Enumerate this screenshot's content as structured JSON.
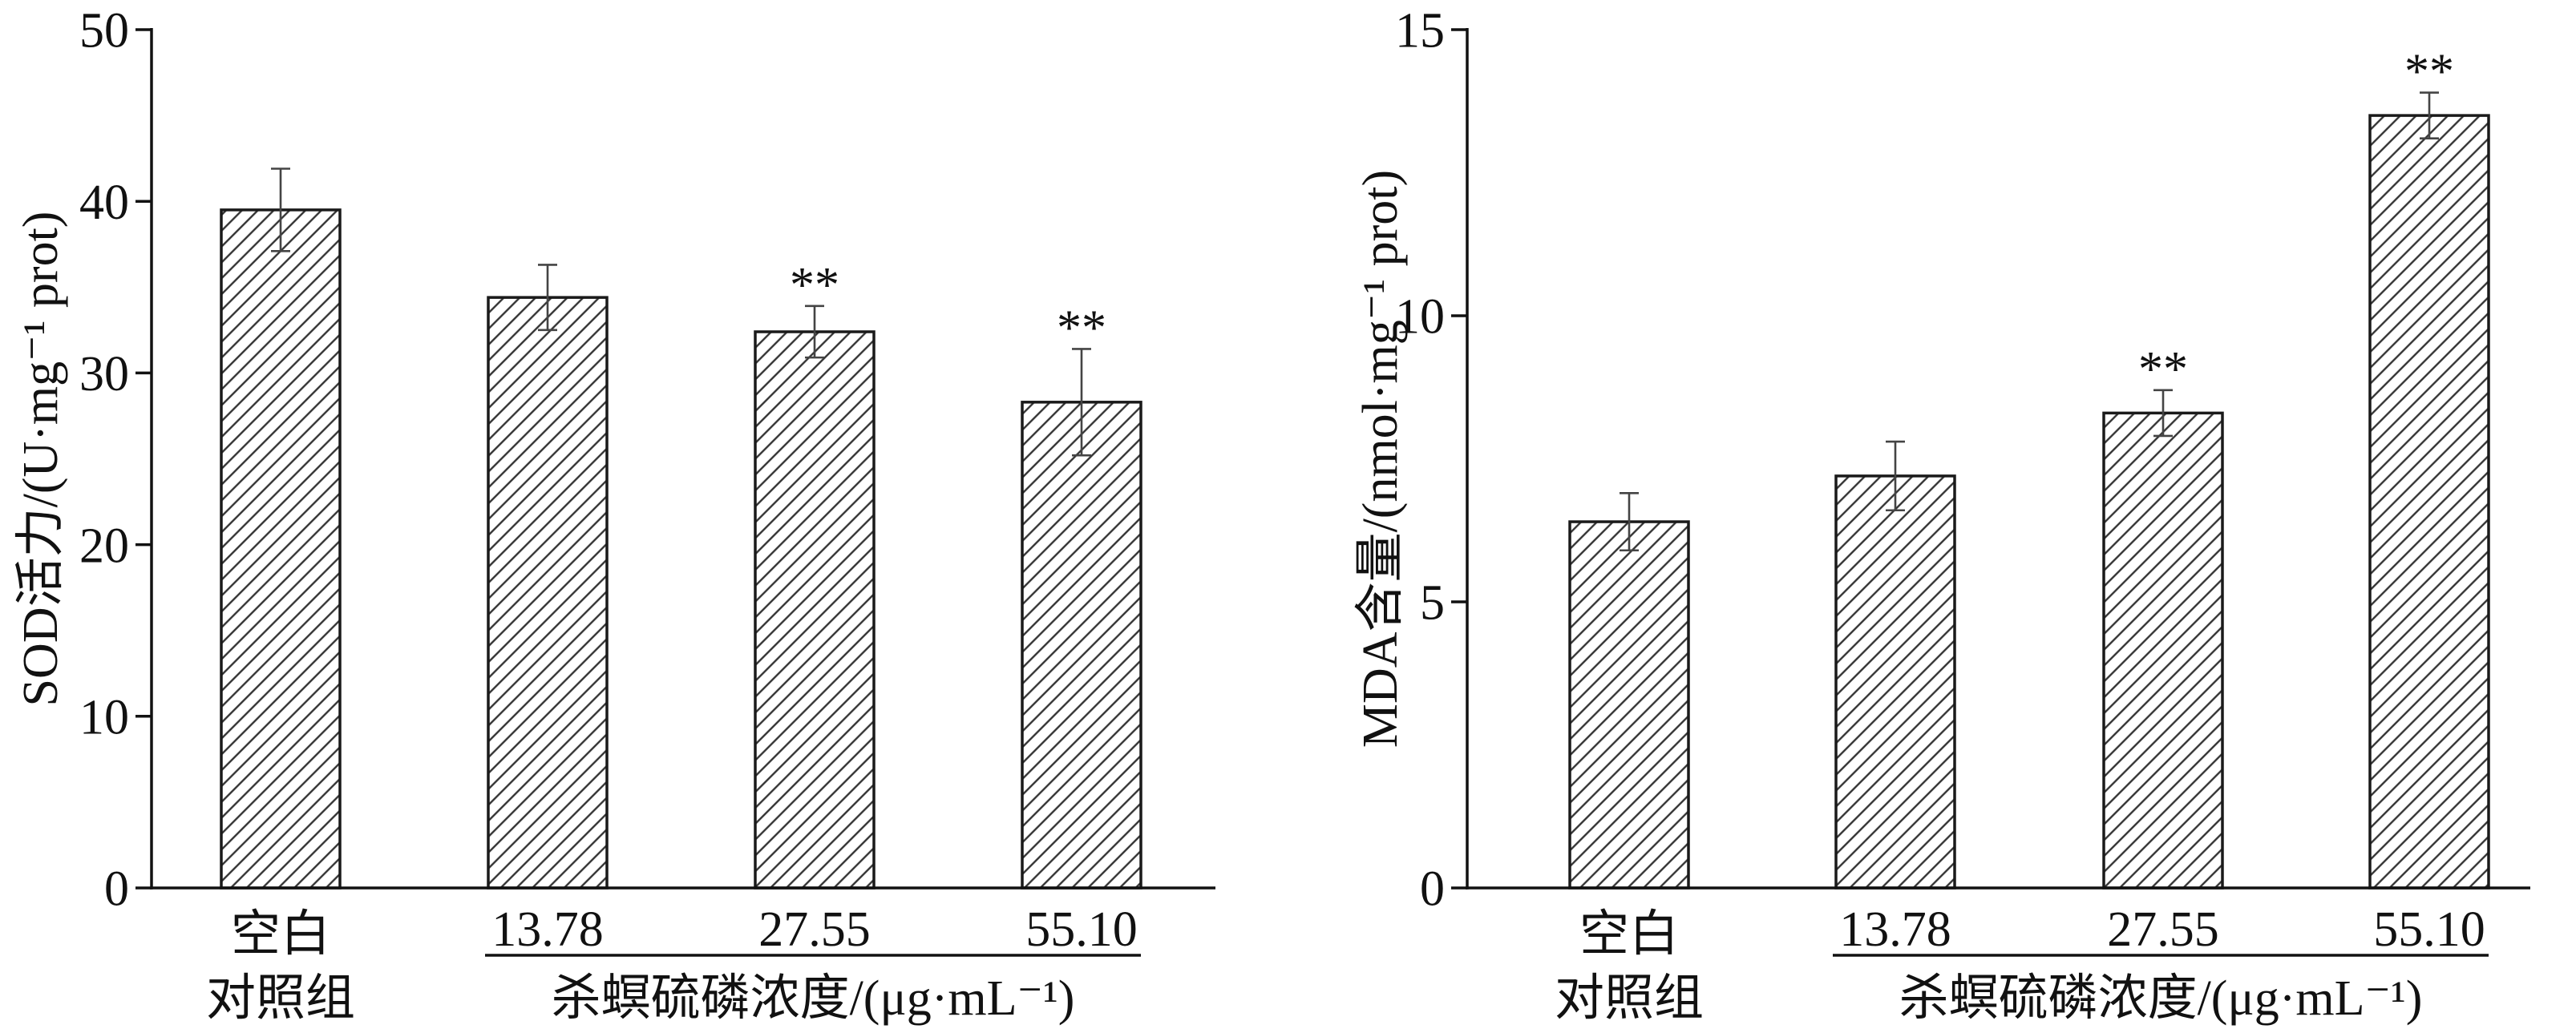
{
  "chart_data": [
    {
      "type": "bar",
      "categories": [
        [
          "空白",
          "对照组"
        ],
        "13.78",
        "27.55",
        "55.10"
      ],
      "values": [
        39.5,
        34.4,
        32.4,
        28.3
      ],
      "errors": [
        2.4,
        1.9,
        1.5,
        3.1
      ],
      "significance": [
        "",
        "",
        "**",
        "**"
      ],
      "ylabel": "SOD活力/(U·mg⁻¹ prot)",
      "xlabel": "杀螟硫磷浓度/(μg·mL⁻¹)",
      "xlabel_spans_categories": [
        1,
        3
      ],
      "ylim": [
        0,
        50
      ],
      "yticks": [
        0,
        10,
        20,
        30,
        40,
        50
      ],
      "grid": false,
      "bar_fill": "diagonal-hatch"
    },
    {
      "type": "bar",
      "categories": [
        [
          "空白",
          "对照组"
        ],
        "13.78",
        "27.55",
        "55.10"
      ],
      "values": [
        6.4,
        7.2,
        8.3,
        13.5
      ],
      "errors": [
        0.5,
        0.6,
        0.4,
        0.4
      ],
      "significance": [
        "",
        "",
        "**",
        "**"
      ],
      "ylabel": "MDA含量/(nmol·mg⁻¹ prot)",
      "xlabel": "杀螟硫磷浓度/(μg·mL⁻¹)",
      "xlabel_spans_categories": [
        1,
        3
      ],
      "ylim": [
        0,
        15
      ],
      "yticks": [
        0,
        5,
        10,
        15
      ],
      "grid": false,
      "bar_fill": "diagonal-hatch"
    }
  ]
}
